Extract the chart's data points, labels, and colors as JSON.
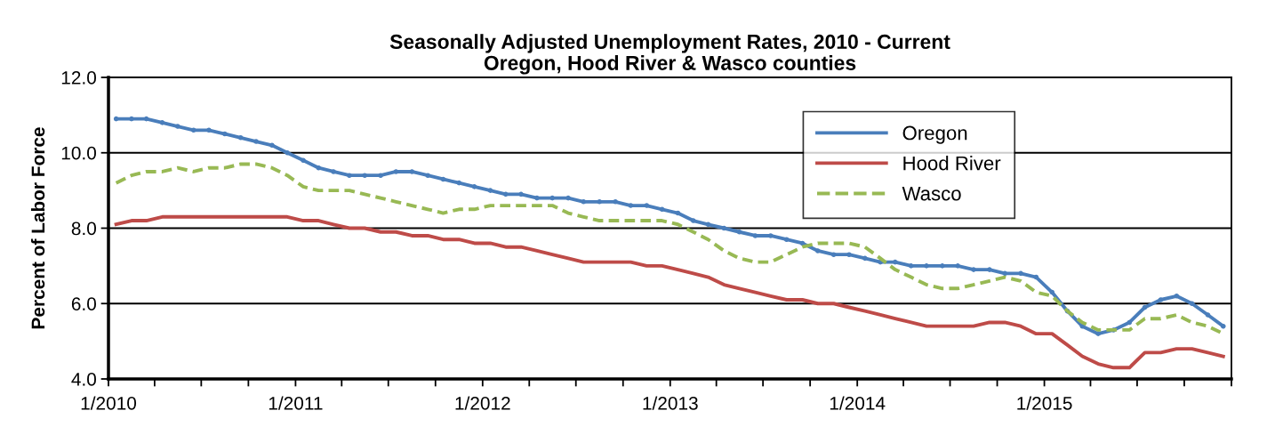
{
  "chart_data": {
    "type": "line",
    "title": "Seasonally Adjusted Unemployment Rates, 2010 - Current\nOregon, Hood River & Wasco counties",
    "ylabel": "Percent of Labor Force",
    "x": [
      "2010-01-16",
      "2010-02-15",
      "2010-03-16",
      "2010-04-16",
      "2010-05-16",
      "2010-06-16",
      "2010-07-16",
      "2010-08-16",
      "2010-09-16",
      "2010-10-16",
      "2010-11-16",
      "2010-12-16",
      "2011-01-16",
      "2011-02-15",
      "2011-03-16",
      "2011-04-16",
      "2011-05-16",
      "2011-06-16",
      "2011-07-16",
      "2011-08-16",
      "2011-09-16",
      "2011-10-16",
      "2011-11-16",
      "2011-12-16",
      "2012-01-16",
      "2012-02-15",
      "2012-03-16",
      "2012-04-16",
      "2012-05-16",
      "2012-06-16",
      "2012-07-16",
      "2012-08-16",
      "2012-09-16",
      "2012-10-16",
      "2012-11-16",
      "2012-12-16",
      "2013-01-16",
      "2013-02-15",
      "2013-03-16",
      "2013-04-16",
      "2013-05-16",
      "2013-06-16",
      "2013-07-16",
      "2013-08-16",
      "2013-09-16",
      "2013-10-16",
      "2013-11-16",
      "2013-12-16",
      "2014-01-16",
      "2014-02-15",
      "2014-03-16",
      "2014-04-16",
      "2014-05-16",
      "2014-06-16",
      "2014-07-16",
      "2014-08-16",
      "2014-09-16",
      "2014-10-16",
      "2014-11-16",
      "2014-12-16",
      "2015-01-16",
      "2015-02-15",
      "2015-03-16",
      "2015-04-16",
      "2015-05-16",
      "2015-06-16",
      "2015-07-16",
      "2015-08-16",
      "2015-09-16",
      "2015-10-16",
      "2015-11-16",
      "2015-12-16"
    ],
    "series": [
      {
        "name": "Oregon",
        "color": "#4a7ebb",
        "marker": "circle",
        "line_style": "solid",
        "values": [
          10.9,
          10.9,
          10.9,
          10.8,
          10.7,
          10.6,
          10.6,
          10.5,
          10.4,
          10.3,
          10.2,
          10.0,
          9.8,
          9.6,
          9.5,
          9.4,
          9.4,
          9.4,
          9.5,
          9.5,
          9.4,
          9.3,
          9.2,
          9.1,
          9.0,
          8.9,
          8.9,
          8.8,
          8.8,
          8.8,
          8.7,
          8.7,
          8.7,
          8.6,
          8.6,
          8.5,
          8.4,
          8.2,
          8.1,
          8.0,
          7.9,
          7.8,
          7.8,
          7.7,
          7.6,
          7.4,
          7.3,
          7.3,
          7.2,
          7.1,
          7.1,
          7.0,
          7.0,
          7.0,
          7.0,
          6.9,
          6.9,
          6.8,
          6.8,
          6.7,
          6.3,
          5.8,
          5.4,
          5.2,
          5.3,
          5.5,
          5.9,
          6.1,
          6.2,
          6.0,
          5.7,
          5.4
        ]
      },
      {
        "name": "Hood River",
        "color": "#be4b48",
        "marker": "none",
        "line_style": "solid",
        "values": [
          8.1,
          8.2,
          8.2,
          8.3,
          8.3,
          8.3,
          8.3,
          8.3,
          8.3,
          8.3,
          8.3,
          8.3,
          8.2,
          8.2,
          8.1,
          8.0,
          8.0,
          7.9,
          7.9,
          7.8,
          7.8,
          7.7,
          7.7,
          7.6,
          7.6,
          7.5,
          7.5,
          7.4,
          7.3,
          7.2,
          7.1,
          7.1,
          7.1,
          7.1,
          7.0,
          7.0,
          6.9,
          6.8,
          6.7,
          6.5,
          6.4,
          6.3,
          6.2,
          6.1,
          6.1,
          6.0,
          6.0,
          5.9,
          5.8,
          5.7,
          5.6,
          5.5,
          5.4,
          5.4,
          5.4,
          5.4,
          5.5,
          5.5,
          5.4,
          5.2,
          5.2,
          4.9,
          4.6,
          4.4,
          4.3,
          4.3,
          4.7,
          4.7,
          4.8,
          4.8,
          4.7,
          4.6
        ]
      },
      {
        "name": "Wasco",
        "color": "#98b954",
        "marker": "none",
        "line_style": "dashed",
        "values": [
          9.2,
          9.4,
          9.5,
          9.5,
          9.6,
          9.5,
          9.6,
          9.6,
          9.7,
          9.7,
          9.6,
          9.4,
          9.1,
          9.0,
          9.0,
          9.0,
          8.9,
          8.8,
          8.7,
          8.6,
          8.5,
          8.4,
          8.5,
          8.5,
          8.6,
          8.6,
          8.6,
          8.6,
          8.6,
          8.4,
          8.3,
          8.2,
          8.2,
          8.2,
          8.2,
          8.2,
          8.1,
          7.9,
          7.7,
          7.4,
          7.2,
          7.1,
          7.1,
          7.3,
          7.5,
          7.6,
          7.6,
          7.6,
          7.5,
          7.2,
          6.9,
          6.7,
          6.5,
          6.4,
          6.4,
          6.5,
          6.6,
          6.7,
          6.6,
          6.3,
          6.2,
          5.8,
          5.5,
          5.3,
          5.3,
          5.3,
          5.6,
          5.6,
          5.7,
          5.5,
          5.4,
          5.2
        ]
      }
    ],
    "xlim": [
      "2010-01-01",
      "2016-01-01"
    ],
    "xticks": [
      {
        "value": "2010-01-01",
        "label": "1/2010"
      },
      {
        "value": "2010-04-01",
        "label": null
      },
      {
        "value": "2010-07-01",
        "label": null
      },
      {
        "value": "2010-10-01",
        "label": null
      },
      {
        "value": "2011-01-01",
        "label": "1/2011"
      },
      {
        "value": "2011-04-01",
        "label": null
      },
      {
        "value": "2011-07-01",
        "label": null
      },
      {
        "value": "2011-10-01",
        "label": null
      },
      {
        "value": "2012-01-01",
        "label": "1/2012"
      },
      {
        "value": "2012-04-01",
        "label": null
      },
      {
        "value": "2012-07-01",
        "label": null
      },
      {
        "value": "2012-10-01",
        "label": null
      },
      {
        "value": "2013-01-01",
        "label": "1/2013"
      },
      {
        "value": "2013-04-01",
        "label": null
      },
      {
        "value": "2013-07-01",
        "label": null
      },
      {
        "value": "2013-10-01",
        "label": null
      },
      {
        "value": "2014-01-01",
        "label": "1/2014"
      },
      {
        "value": "2014-04-01",
        "label": null
      },
      {
        "value": "2014-07-01",
        "label": null
      },
      {
        "value": "2014-10-01",
        "label": null
      },
      {
        "value": "2015-01-01",
        "label": "1/2015"
      },
      {
        "value": "2015-04-01",
        "label": null
      },
      {
        "value": "2015-07-01",
        "label": null
      },
      {
        "value": "2015-10-01",
        "label": null
      },
      {
        "value": "2016-01-01",
        "label": null
      }
    ],
    "ylim": [
      4.0,
      12.0
    ],
    "yticks": [
      {
        "value": 4,
        "label": "4.0"
      },
      {
        "value": 6,
        "label": "6.0"
      },
      {
        "value": 8,
        "label": "8.0"
      },
      {
        "value": 10,
        "label": "10.0"
      },
      {
        "value": 12,
        "label": "12.0"
      }
    ],
    "grid": "y",
    "legend": "top right"
  }
}
